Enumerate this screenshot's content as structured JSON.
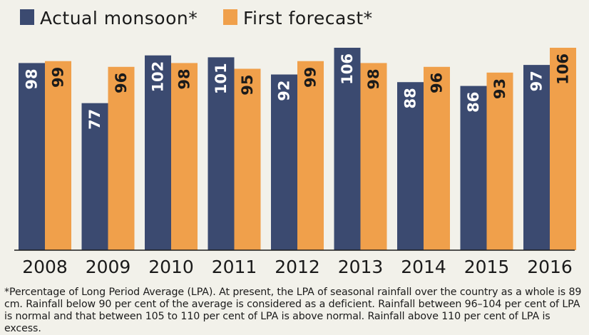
{
  "chart_data": {
    "type": "bar",
    "categories": [
      "2008",
      "2009",
      "2010",
      "2011",
      "2012",
      "2013",
      "2014",
      "2015",
      "2016"
    ],
    "series": [
      {
        "name": "Actual monsoon*",
        "color": "#3b4a70",
        "label_color": "#ffffff",
        "values": [
          98,
          77,
          102,
          101,
          92,
          106,
          88,
          86,
          97
        ]
      },
      {
        "name": "First forecast*",
        "color": "#f0a04b",
        "label_color": "#1a1a1a",
        "values": [
          99,
          96,
          98,
          95,
          99,
          98,
          96,
          93,
          106
        ]
      }
    ],
    "title": "",
    "xlabel": "",
    "ylabel": "",
    "ylim": [
      0,
      106
    ],
    "legend": "top-left",
    "grid": false
  },
  "footnote": "*Percentage of Long Period Average (LPA). At present, the LPA of seasonal rainfall over the country as a whole is 89 cm. Rainfall below 90 per cent of the average is considered as a deficient. Rainfall between 96–104 per cent of LPA is normal and that between 105 to 110 per cent of LPA is above normal. Rainfall above 110 per cent of LPA is excess."
}
